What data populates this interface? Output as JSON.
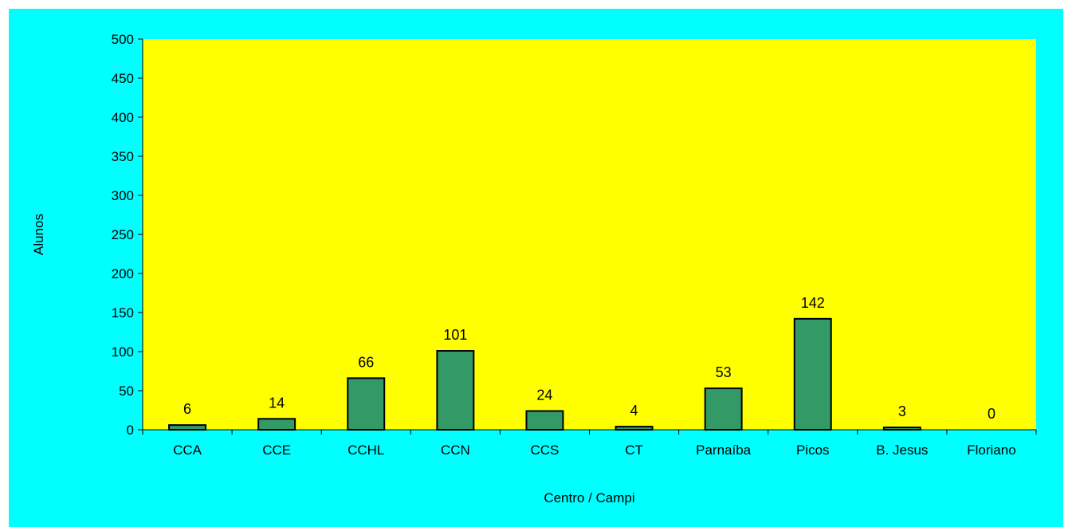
{
  "colors": {
    "chart_area": "#00FFFF",
    "plot_area": "#FFFF00",
    "bar_fill": "#339966",
    "bar_stroke": "#000000",
    "axis": "#000000"
  },
  "chart_data": {
    "type": "bar",
    "title": "",
    "xlabel": "Centro / Campi",
    "ylabel": "Alunos",
    "categories": [
      "CCA",
      "CCE",
      "CCHL",
      "CCN",
      "CCS",
      "CT",
      "Parnaíba",
      "Picos",
      "B. Jesus",
      "Floriano"
    ],
    "values": [
      6,
      14,
      66,
      101,
      24,
      4,
      53,
      142,
      3,
      0
    ],
    "ylim": [
      0,
      500
    ],
    "yticks": [
      0,
      50,
      100,
      150,
      200,
      250,
      300,
      350,
      400,
      450,
      500
    ],
    "grid": false,
    "legend": "none",
    "data_labels": true
  }
}
